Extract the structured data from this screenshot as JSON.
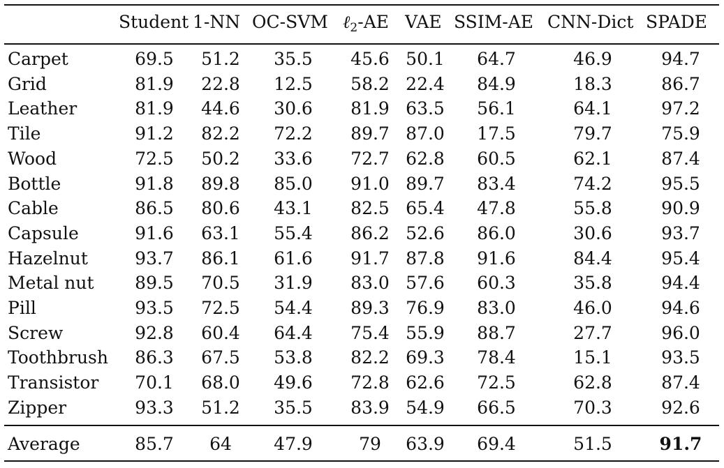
{
  "table": {
    "headers": [
      "",
      "Student",
      "1-NN",
      "OC-SVM",
      "ℓ2-AE",
      "VAE",
      "SSIM-AE",
      "CNN-Dict",
      "SPADE"
    ],
    "rows": [
      {
        "label": "Carpet",
        "values": [
          "69.5",
          "51.2",
          "35.5",
          "45.6",
          "50.1",
          "64.7",
          "46.9",
          "94.7"
        ]
      },
      {
        "label": "Grid",
        "values": [
          "81.9",
          "22.8",
          "12.5",
          "58.2",
          "22.4",
          "84.9",
          "18.3",
          "86.7"
        ]
      },
      {
        "label": "Leather",
        "values": [
          "81.9",
          "44.6",
          "30.6",
          "81.9",
          "63.5",
          "56.1",
          "64.1",
          "97.2"
        ]
      },
      {
        "label": "Tile",
        "values": [
          "91.2",
          "82.2",
          "72.2",
          "89.7",
          "87.0",
          "17.5",
          "79.7",
          "75.9"
        ]
      },
      {
        "label": "Wood",
        "values": [
          "72.5",
          "50.2",
          "33.6",
          "72.7",
          "62.8",
          "60.5",
          "62.1",
          "87.4"
        ]
      },
      {
        "label": "Bottle",
        "values": [
          "91.8",
          "89.8",
          "85.0",
          "91.0",
          "89.7",
          "83.4",
          "74.2",
          "95.5"
        ]
      },
      {
        "label": "Cable",
        "values": [
          "86.5",
          "80.6",
          "43.1",
          "82.5",
          "65.4",
          "47.8",
          "55.8",
          "90.9"
        ]
      },
      {
        "label": "Capsule",
        "values": [
          "91.6",
          "63.1",
          "55.4",
          "86.2",
          "52.6",
          "86.0",
          "30.6",
          "93.7"
        ]
      },
      {
        "label": "Hazelnut",
        "values": [
          "93.7",
          "86.1",
          "61.6",
          "91.7",
          "87.8",
          "91.6",
          "84.4",
          "95.4"
        ]
      },
      {
        "label": "Metal nut",
        "values": [
          "89.5",
          "70.5",
          "31.9",
          "83.0",
          "57.6",
          "60.3",
          "35.8",
          "94.4"
        ]
      },
      {
        "label": "Pill",
        "values": [
          "93.5",
          "72.5",
          "54.4",
          "89.3",
          "76.9",
          "83.0",
          "46.0",
          "94.6"
        ]
      },
      {
        "label": "Screw",
        "values": [
          "92.8",
          "60.4",
          "64.4",
          "75.4",
          "55.9",
          "88.7",
          "27.7",
          "96.0"
        ]
      },
      {
        "label": "Toothbrush",
        "values": [
          "86.3",
          "67.5",
          "53.8",
          "82.2",
          "69.3",
          "78.4",
          "15.1",
          "93.5"
        ]
      },
      {
        "label": "Transistor",
        "values": [
          "70.1",
          "68.0",
          "49.6",
          "72.8",
          "62.6",
          "72.5",
          "62.8",
          "87.4"
        ]
      },
      {
        "label": "Zipper",
        "values": [
          "93.3",
          "51.2",
          "35.5",
          "83.9",
          "54.9",
          "66.5",
          "70.3",
          "92.6"
        ]
      }
    ],
    "average": {
      "label": "Average",
      "values": [
        "85.7",
        "64",
        "47.9",
        "79",
        "63.9",
        "69.4",
        "51.5",
        "91.7"
      ]
    }
  }
}
